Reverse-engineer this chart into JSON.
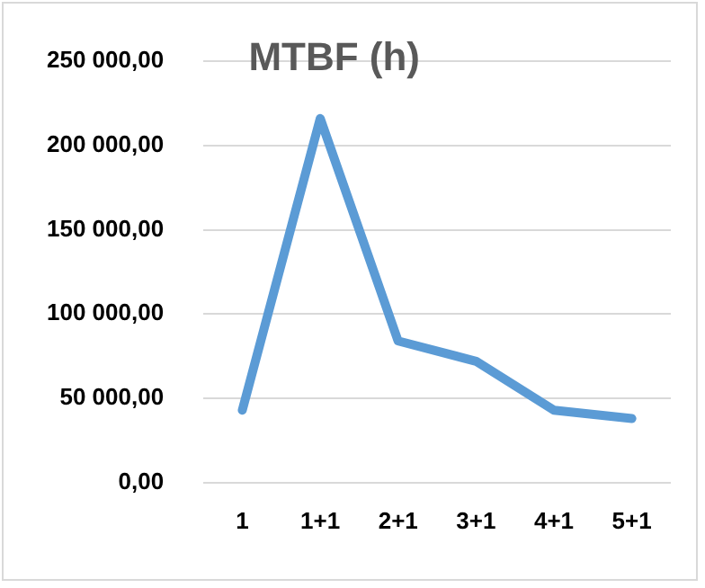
{
  "chart_data": {
    "type": "line",
    "title": "MTBF (h)",
    "categories": [
      "1",
      "1+1",
      "2+1",
      "3+1",
      "4+1",
      "5+1"
    ],
    "series": [
      {
        "color": "#5b9bd5",
        "values": [
          43000,
          216000,
          84000,
          72000,
          43000,
          38000
        ]
      }
    ],
    "ylim": [
      0,
      250000
    ],
    "yticks": [
      {
        "value": 0,
        "label": "0,00"
      },
      {
        "value": 50000,
        "label": "50 000,00"
      },
      {
        "value": 100000,
        "label": "100 000,00"
      },
      {
        "value": 150000,
        "label": "150 000,00"
      },
      {
        "value": 200000,
        "label": "200 000,00"
      },
      {
        "value": 250000,
        "label": "250 000,00"
      }
    ],
    "grid": "y",
    "legend": false,
    "marker": "none",
    "line_style": "solid"
  }
}
